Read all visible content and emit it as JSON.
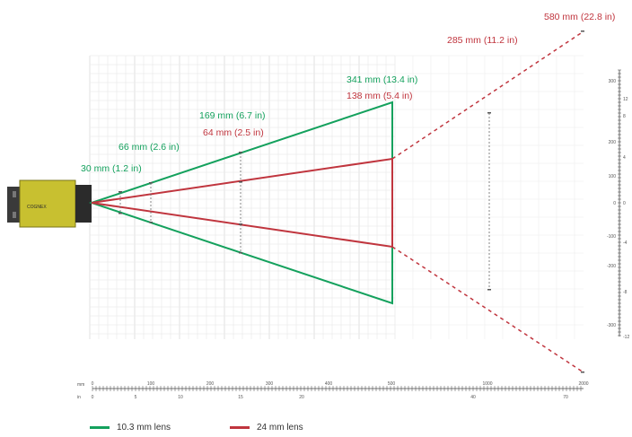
{
  "colors": {
    "green": "#14a15d",
    "red": "#c0353e",
    "grid": "#e2e2e2",
    "camera_body": "#c8c030",
    "camera_dark": "#2b2b2b"
  },
  "labels": {
    "g30": "30 mm (1.2 in)",
    "g66": "66 mm (2.6 in)",
    "g169": "169 mm (6.7 in)",
    "g341": "341 mm (13.4 in)",
    "r64": "64 mm (2.5 in)",
    "r138": "138 mm (5.4 in)",
    "r285": "285 mm (11.2 in)",
    "r580": "580 mm (22.8 in)"
  },
  "legend": {
    "green": "10.3 mm lens",
    "red": "24 mm lens"
  },
  "bottom_axis": {
    "mm_unit": "mm",
    "in_unit": "in",
    "mm_ticks": [
      "0",
      "100",
      "200",
      "300",
      "400",
      "500",
      "1000",
      "2000"
    ],
    "in_ticks": [
      "0",
      "5",
      "10",
      "15",
      "20",
      "40",
      "70"
    ]
  },
  "right_axis": {
    "mm_ticks": [
      "300",
      "200",
      "100",
      "0",
      "-100",
      "-200",
      "-300"
    ],
    "in_ticks": [
      "12",
      "8",
      "4",
      "0",
      "-4",
      "-8",
      "-12"
    ]
  },
  "camera": {
    "brand": "COGNEX"
  }
}
